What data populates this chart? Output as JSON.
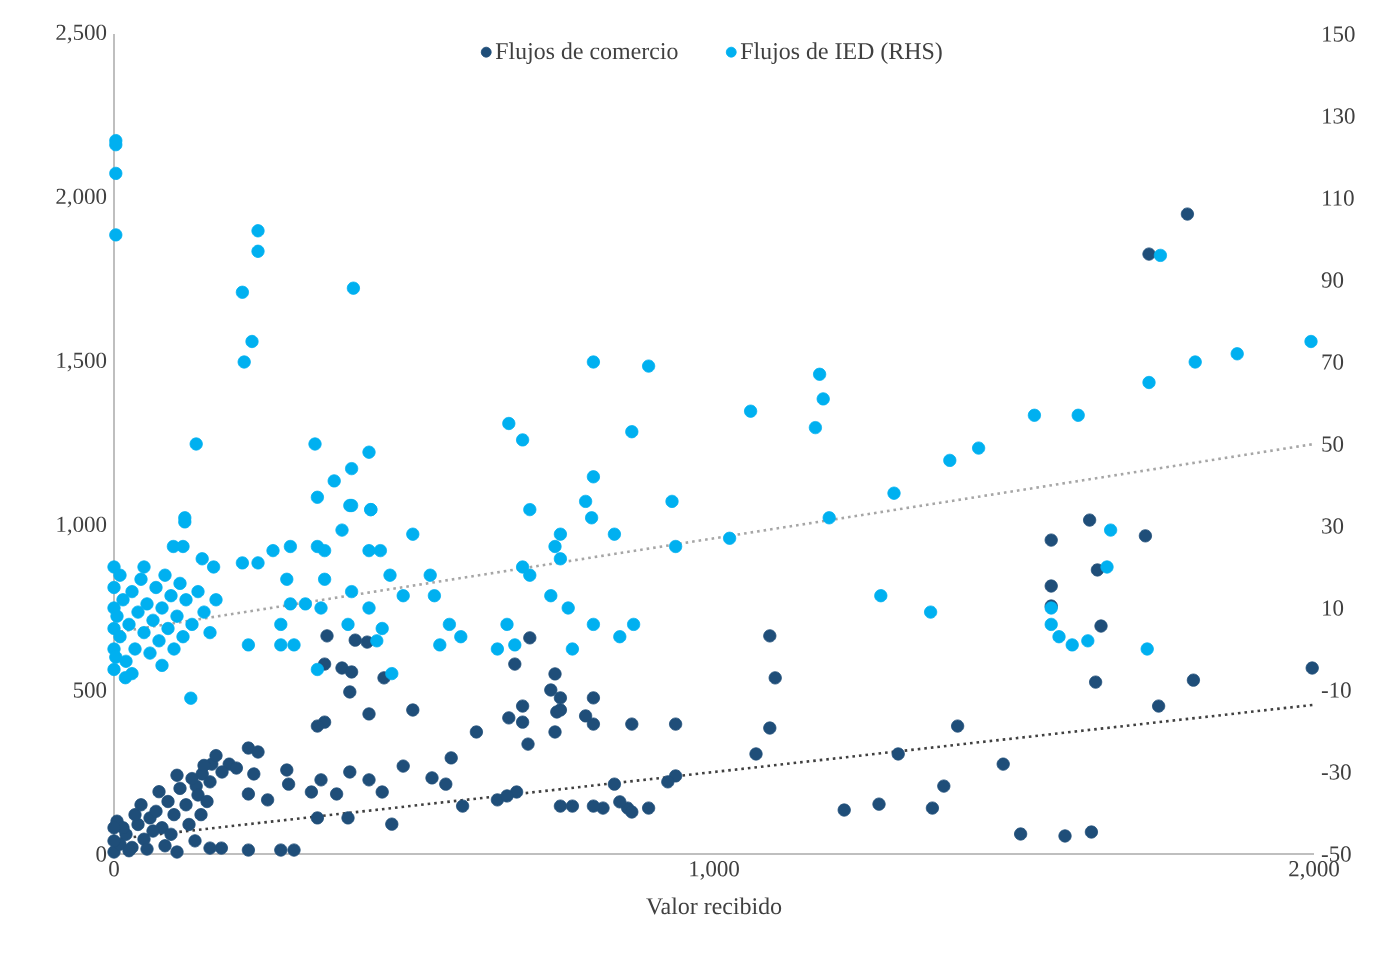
{
  "chart_data": {
    "type": "scatter",
    "xlabel": "Valor recibido",
    "xlim": [
      0,
      2000
    ],
    "xticks": [
      0,
      {
        "value": 1000,
        "label": "1,000"
      },
      {
        "value": 2000,
        "label": "2,000"
      }
    ],
    "ylim": [
      0,
      2500
    ],
    "yticks": [
      0,
      {
        "value": 500,
        "label": "500"
      },
      {
        "value": 1000,
        "label": "1,000"
      },
      {
        "value": 1500,
        "label": "1,500"
      },
      {
        "value": 2000,
        "label": "2,000"
      },
      {
        "value": 2500,
        "label": "2,500"
      }
    ],
    "y2lim": [
      -50,
      150
    ],
    "y2ticks": [
      -50,
      -30,
      -10,
      10,
      30,
      50,
      70,
      90,
      110,
      130,
      150
    ],
    "legend": "top",
    "grid": false,
    "marker": "circle",
    "series": [
      {
        "name": "Flujos de comercio",
        "color": "#1f4e79",
        "axis": "y",
        "x": [
          1789,
          1725,
          1626,
          1719,
          1562,
          1562,
          1562,
          1639,
          1645,
          1636,
          1799,
          1997,
          1741,
          1482,
          1629,
          1585,
          1511,
          1406,
          1307,
          1275,
          1217,
          1364,
          1383,
          1102,
          1093,
          1093,
          1070,
          936,
          923,
          856,
          891,
          815,
          834,
          799,
          738,
          744,
          735,
          690,
          681,
          671,
          604,
          355,
          402,
          422,
          351,
          380,
          396,
          450,
          393,
          425,
          498,
          351,
          339,
          658,
          681,
          693,
          668,
          728,
          744,
          735,
          786,
          799,
          863,
          936,
          224,
          240,
          192,
          147,
          163,
          204,
          233,
          288,
          291,
          329,
          345,
          371,
          393,
          425,
          447,
          482,
          530,
          562,
          553,
          581,
          639,
          655,
          744,
          764,
          799,
          843,
          863,
          463,
          390,
          339,
          137,
          256,
          224,
          224,
          278,
          300,
          179,
          160,
          105,
          0,
          10,
          20,
          30,
          40,
          50,
          60,
          70,
          80,
          90,
          100,
          110,
          120,
          130,
          140,
          150,
          160,
          170,
          180,
          25,
          55,
          85,
          5,
          15,
          35,
          45,
          65,
          75,
          95,
          105,
          125,
          135,
          145,
          155,
          0,
          0
        ],
        "values": [
          1951,
          1829,
          1018,
          970,
          957,
          817,
          756,
          866,
          695,
          524,
          530,
          567,
          451,
          274,
          67,
          55,
          61,
          390,
          305,
          152,
          134,
          140,
          207,
          537,
          665,
          384,
          305,
          238,
          220,
          140,
          140,
          140,
          213,
          396,
          433,
          476,
          549,
          335,
          402,
          189,
          372,
          665,
          652,
          646,
          579,
          567,
          555,
          537,
          494,
          427,
          439,
          402,
          390,
          415,
          451,
          659,
          579,
          500,
          439,
          372,
          421,
          476,
          396,
          396,
          323,
          311,
          274,
          244,
          274,
          262,
          244,
          256,
          213,
          189,
          226,
          183,
          250,
          226,
          189,
          268,
          232,
          293,
          213,
          146,
          165,
          177,
          146,
          146,
          146,
          159,
          128,
          91,
          110,
          110,
          207,
          165,
          183,
          12,
          12,
          12,
          18,
          18,
          6,
          6,
          30,
          60,
          20,
          90,
          45,
          110,
          130,
          80,
          160,
          120,
          200,
          150,
          230,
          180,
          270,
          220,
          300,
          250,
          10,
          15,
          25,
          100,
          80,
          120,
          150,
          70,
          190,
          60,
          240,
          90,
          40,
          120,
          160,
          40,
          80
        ]
      },
      {
        "name": "Flujos de IED (RHS)",
        "color": "#00b0f0",
        "axis": "y2",
        "x": [
          3,
          3,
          3,
          3,
          240,
          240,
          214,
          399,
          230,
          217,
          799,
          137,
          335,
          658,
          681,
          863,
          1061,
          425,
          396,
          367,
          339,
          396,
          428,
          693,
          786,
          118,
          1744,
          1725,
          1802,
          1872,
          1995,
          1607,
          1534,
          1441,
          1393,
          1300,
          1176,
          1182,
          1169,
          1192,
          891,
          799,
          796,
          834,
          930,
          1026,
          1278,
          1361,
          1562,
          1562,
          1575,
          1597,
          1623,
          1655,
          1661,
          1722,
          118,
          99,
          115,
          147,
          166,
          214,
          240,
          265,
          294,
          339,
          351,
          380,
          393,
          428,
          498,
          425,
          444,
          288,
          351,
          460,
          527,
          396,
          294,
          319,
          345,
          425,
          482,
          534,
          278,
          390,
          447,
          559,
          578,
          543,
          300,
          278,
          224,
          438,
          339,
          463,
          128,
          19,
          80,
          681,
          693,
          735,
          744,
          744,
          728,
          757,
          799,
          866,
          843,
          655,
          668,
          639,
          764,
          936,
          0,
          0,
          0,
          0,
          3,
          5,
          10,
          15,
          20,
          25,
          30,
          35,
          40,
          45,
          50,
          55,
          60,
          65,
          70,
          75,
          80,
          85,
          90,
          95,
          100,
          105,
          110,
          115,
          120,
          130,
          140,
          150,
          160,
          170,
          0,
          0,
          10,
          50,
          30
        ],
        "values": [
          124,
          123,
          116,
          101,
          102,
          97,
          87,
          88,
          75,
          70,
          70,
          50,
          50,
          55,
          51,
          53,
          58,
          48,
          44,
          41,
          37,
          35,
          34,
          34,
          36,
          32,
          96,
          65,
          70,
          72,
          75,
          57,
          57,
          49,
          46,
          38,
          67,
          61,
          54,
          32,
          69,
          42,
          32,
          28,
          36,
          27,
          13,
          9,
          10,
          6,
          3,
          1,
          2,
          20,
          29,
          0,
          31,
          25,
          25,
          22,
          20,
          21,
          21,
          24,
          25,
          25,
          24,
          29,
          35,
          34,
          28,
          24,
          24,
          17,
          17,
          18,
          18,
          14,
          11,
          11,
          10,
          10,
          13,
          13,
          6,
          6,
          5,
          6,
          3,
          1,
          1,
          1,
          1,
          2,
          -5,
          -6,
          -12,
          -7,
          -4,
          20,
          18,
          25,
          28,
          22,
          13,
          10,
          6,
          6,
          3,
          6,
          1,
          0,
          0,
          25,
          0,
          5,
          10,
          15,
          -2,
          8,
          3,
          12,
          -3,
          6,
          14,
          0,
          9,
          17,
          4,
          11,
          -1,
          7,
          15,
          2,
          10,
          18,
          5,
          13,
          0,
          8,
          16,
          3,
          12,
          6,
          14,
          9,
          4,
          12,
          20,
          -5,
          18,
          20,
          -6
        ]
      },
      {
        "type": "line",
        "color": "#404040",
        "axis": "y",
        "marker": "none",
        "line_style": "dotted",
        "x": [
          0,
          2000
        ],
        "values": [
          45,
          455
        ]
      },
      {
        "type": "line",
        "color": "#a6a6a6",
        "axis": "y2",
        "marker": "none",
        "line_style": "dotted",
        "x": [
          0,
          2000
        ],
        "values": [
          4,
          50
        ]
      }
    ]
  }
}
